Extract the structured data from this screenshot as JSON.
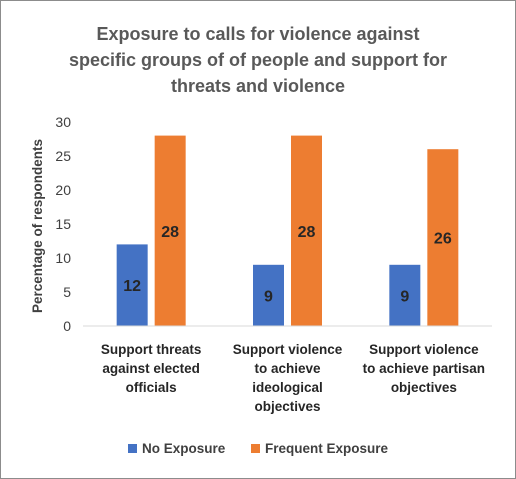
{
  "chart_data": {
    "type": "bar",
    "title_lines": [
      "Exposure to calls for violence against",
      "specific groups of of people and support for",
      "threats and violence"
    ],
    "ylabel": "Percentage of respondents",
    "xlabel": "",
    "ylim": [
      0,
      30
    ],
    "yticks": [
      0,
      5,
      10,
      15,
      20,
      25,
      30
    ],
    "grid": false,
    "legend_position": "bottom",
    "categories": [
      [
        "Support threats",
        "against elected",
        "officials"
      ],
      [
        "Support violence",
        "to achieve",
        "ideological",
        "objectives"
      ],
      [
        "Support violence",
        "to achieve partisan",
        "objectives"
      ]
    ],
    "series": [
      {
        "name": "No Exposure",
        "color": "#4472C4",
        "values": [
          12,
          9,
          9
        ]
      },
      {
        "name": "Frequent Exposure",
        "color": "#ED7D31",
        "values": [
          28,
          28,
          26
        ]
      }
    ]
  }
}
